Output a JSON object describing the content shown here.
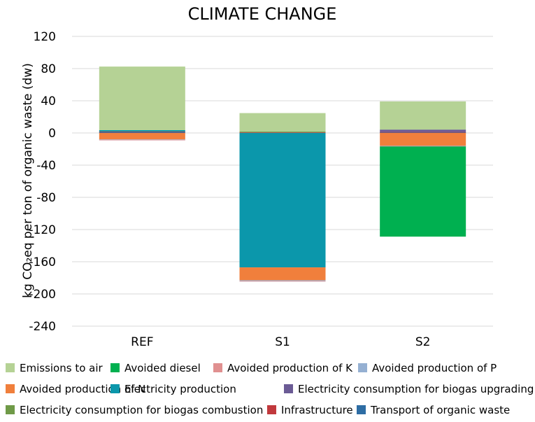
{
  "chart_data": {
    "type": "bar",
    "stacked": true,
    "title": "CLIMATE CHANGE",
    "xlabel": "",
    "ylabel": "kg CO₂eq per ton of organic waste (dw)",
    "ylim": [
      -240,
      120
    ],
    "yticks": [
      120,
      80,
      40,
      0,
      -40,
      -80,
      -120,
      -160,
      -200,
      -240
    ],
    "ytick_labels": [
      "120",
      "80",
      "40",
      "0",
      "-40",
      "-80",
      "-120",
      "-160",
      "-200",
      "-240"
    ],
    "grid": true,
    "legend_position": "bottom",
    "categories": [
      "REF",
      "S1",
      "S2"
    ],
    "series": [
      {
        "name": "Transport of organic waste",
        "color": "#2e6da4",
        "values": [
          1.5,
          0.5,
          1.0
        ]
      },
      {
        "name": "Infrastructure",
        "color": "#c1393d",
        "values": [
          0.2,
          0.2,
          0.2
        ]
      },
      {
        "name": "Electricity consumption for biogas combustion",
        "color": "#6f9a47",
        "values": [
          0,
          1.0,
          0
        ]
      },
      {
        "name": "Electricity consumption for biogas upgrading",
        "color": "#6b5b95",
        "values": [
          0,
          0,
          3.0
        ]
      },
      {
        "name": "Electricity production",
        "color": "#0b97ab",
        "values": [
          1.8,
          -167,
          0
        ]
      },
      {
        "name": "Avoided production of N",
        "color": "#f07f3c",
        "values": [
          -8,
          -16,
          -16
        ]
      },
      {
        "name": "Avoided production of P",
        "color": "#95b0d2",
        "values": [
          -0.5,
          -1.0,
          -0.5
        ]
      },
      {
        "name": "Avoided production of K",
        "color": "#e09090",
        "values": [
          -0.3,
          -0.5,
          -0.3
        ]
      },
      {
        "name": "Avoided diesel",
        "color": "#00b050",
        "values": [
          0,
          0,
          -112
        ]
      },
      {
        "name": "Emissions to air",
        "color": "#b5d295",
        "values": [
          79,
          23,
          35
        ]
      }
    ],
    "legend_order": [
      "Emissions to air",
      "Avoided diesel",
      "Avoided production of K",
      "Avoided production of P",
      "Avoided production of N",
      "Electricity production",
      "Electricity consumption for biogas upgrading",
      "Electricity consumption for biogas combustion",
      "Infrastructure",
      "Transport of organic waste"
    ]
  }
}
